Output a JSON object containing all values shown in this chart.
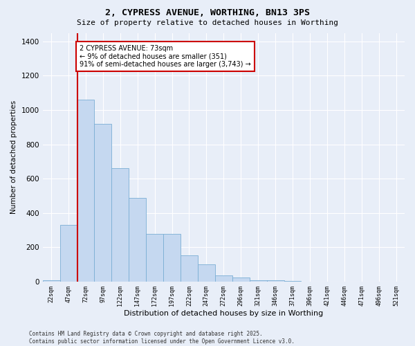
{
  "title": "2, CYPRESS AVENUE, WORTHING, BN13 3PS",
  "subtitle": "Size of property relative to detached houses in Worthing",
  "xlabel": "Distribution of detached houses by size in Worthing",
  "ylabel": "Number of detached properties",
  "footer": "Contains HM Land Registry data © Crown copyright and database right 2025.\nContains public sector information licensed under the Open Government Licence v3.0.",
  "bar_color": "#c5d8f0",
  "bar_edge_color": "#7aaed4",
  "background_color": "#e8eef8",
  "grid_color": "#ffffff",
  "bins": [
    "22sqm",
    "47sqm",
    "72sqm",
    "97sqm",
    "122sqm",
    "147sqm",
    "172sqm",
    "197sqm",
    "222sqm",
    "247sqm",
    "272sqm",
    "296sqm",
    "321sqm",
    "346sqm",
    "371sqm",
    "396sqm",
    "421sqm",
    "446sqm",
    "471sqm",
    "496sqm",
    "521sqm"
  ],
  "values": [
    10,
    330,
    1060,
    920,
    660,
    490,
    280,
    280,
    155,
    100,
    35,
    25,
    10,
    10,
    5,
    2,
    0,
    0,
    0,
    2,
    0
  ],
  "ylim": [
    0,
    1450
  ],
  "yticks": [
    0,
    200,
    400,
    600,
    800,
    1000,
    1200,
    1400
  ],
  "annotation_title": "2 CYPRESS AVENUE: 73sqm",
  "annotation_line1": "← 9% of detached houses are smaller (351)",
  "annotation_line2": "91% of semi-detached houses are larger (3,743) →",
  "vline_color": "#cc0000",
  "annotation_edge_color": "#cc0000",
  "vline_bin_index": 2
}
